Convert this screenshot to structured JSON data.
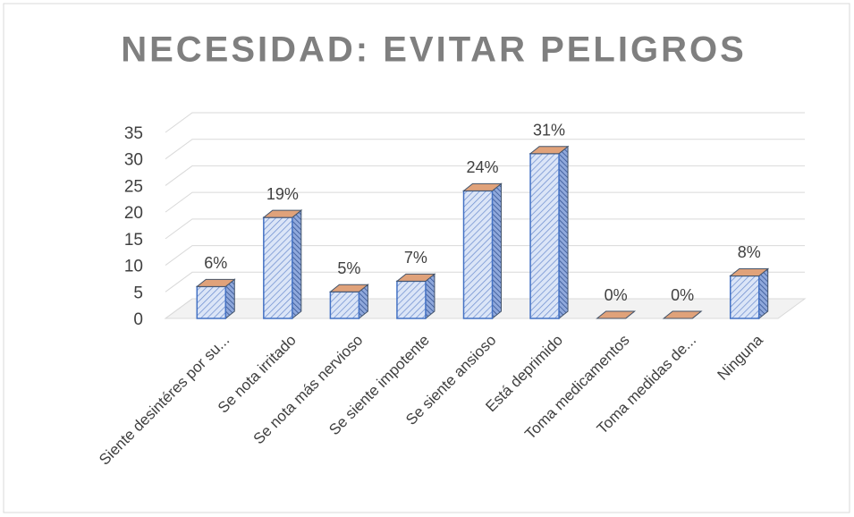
{
  "chart_data": {
    "type": "bar3d",
    "title": "NECESIDAD: EVITAR PELIGROS",
    "categories": [
      "Siente desintéres por su...",
      "Se nota irritado",
      "Se nota más nervioso",
      "Se siente impotente",
      "Se siente ansioso",
      "Está deprimido",
      "Toma medicamentos",
      "Toma medidas de...",
      "Ninguna"
    ],
    "values": [
      6,
      19,
      5,
      7,
      24,
      31,
      0,
      0,
      8
    ],
    "value_labels": [
      "6%",
      "19%",
      "5%",
      "7%",
      "24%",
      "31%",
      "0%",
      "0%",
      "8%"
    ],
    "ylim": [
      0,
      35
    ],
    "yticks": [
      0,
      5,
      10,
      15,
      20,
      25,
      30,
      35
    ],
    "grid": true,
    "color": "#4472c4",
    "top_color": "#e0a27a"
  }
}
